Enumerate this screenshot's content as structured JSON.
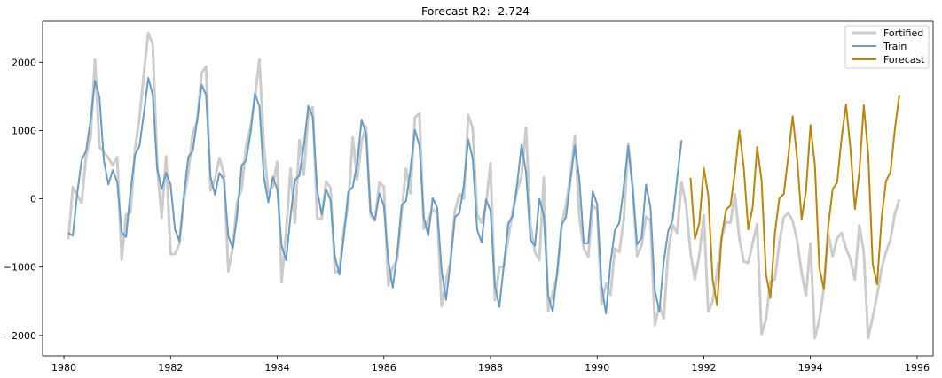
{
  "chart_data": {
    "type": "line",
    "title": "Forecast R2: -2.724",
    "xlabel": "",
    "ylabel": "",
    "xlim": [
      1979.6,
      1996.3
    ],
    "ylim": [
      -2300,
      2600
    ],
    "xticks": [
      1980,
      1982,
      1984,
      1986,
      1988,
      1990,
      1992,
      1994,
      1996
    ],
    "yticks": [
      -2000,
      -1000,
      0,
      1000,
      2000
    ],
    "grid": false,
    "legend": "top-right",
    "start": 1980.083,
    "step": 0.08333,
    "series": [
      {
        "name": "Fortified",
        "color": "#cccccc",
        "x_start": 1980.083,
        "values": [
          -590,
          170,
          60,
          -60,
          620,
          890,
          2040,
          760,
          680,
          600,
          490,
          610,
          -890,
          -230,
          -200,
          720,
          1180,
          1840,
          2430,
          2260,
          480,
          -280,
          620,
          -810,
          -810,
          -660,
          -30,
          380,
          960,
          1130,
          1840,
          1940,
          120,
          290,
          600,
          370,
          -1060,
          -710,
          -40,
          140,
          770,
          1050,
          1490,
          2040,
          760,
          90,
          180,
          540,
          -1220,
          -490,
          440,
          -350,
          860,
          350,
          1240,
          1340,
          -280,
          -300,
          250,
          160,
          -1080,
          -1040,
          -440,
          -100,
          900,
          280,
          840,
          1060,
          -240,
          -320,
          240,
          180,
          -1270,
          -1000,
          -890,
          -210,
          440,
          80,
          1190,
          1250,
          -440,
          -300,
          -160,
          -210,
          -1570,
          -1190,
          -910,
          -180,
          70,
          0,
          1230,
          1030,
          -230,
          -350,
          -90,
          520,
          -1480,
          -1000,
          -1000,
          -580,
          -170,
          120,
          340,
          1040,
          -380,
          -780,
          -900,
          310,
          -1640,
          -1380,
          -1120,
          -400,
          -80,
          330,
          930,
          -270,
          -730,
          -850,
          -100,
          -160,
          -1540,
          -1240,
          -1410,
          -730,
          -780,
          -300,
          810,
          160,
          -840,
          -680,
          -260,
          -320,
          -1850,
          -1560,
          -1750,
          -770,
          -380,
          -500,
          240,
          -90,
          -780,
          -1180,
          -820,
          -240,
          -1650,
          -1500,
          -1080,
          -580,
          -340,
          -350,
          70,
          -580,
          -920,
          -940,
          -650,
          -370,
          -1980,
          -1770,
          -1200,
          -1180,
          -640,
          -270,
          -210,
          -320,
          -610,
          -1070,
          -1420,
          -650,
          -2040,
          -1770,
          -1320,
          -510,
          -840,
          -580,
          -500,
          -720,
          -890,
          -1180,
          -390,
          -780,
          -2040,
          -1740,
          -1420,
          -1030,
          -780,
          -600,
          -220,
          -10
        ]
      },
      {
        "name": "Train",
        "color": "#6a9bc3",
        "x_start": 1980.083,
        "values": [
          -500,
          -540,
          80,
          570,
          700,
          1150,
          1730,
          1490,
          560,
          210,
          420,
          240,
          -490,
          -560,
          120,
          640,
          770,
          1250,
          1770,
          1520,
          440,
          140,
          380,
          210,
          -450,
          -620,
          50,
          610,
          700,
          1160,
          1670,
          1520,
          320,
          60,
          380,
          280,
          -550,
          -720,
          -240,
          490,
          560,
          960,
          1540,
          1350,
          320,
          -50,
          320,
          140,
          -690,
          -900,
          -250,
          280,
          340,
          780,
          1360,
          1200,
          130,
          -230,
          140,
          -20,
          -850,
          -1110,
          -550,
          100,
          170,
          520,
          1160,
          950,
          -190,
          -310,
          80,
          -100,
          -900,
          -1300,
          -810,
          -100,
          -30,
          440,
          1010,
          780,
          -270,
          -540,
          10,
          -130,
          -1050,
          -1480,
          -930,
          -270,
          -210,
          200,
          870,
          590,
          -450,
          -640,
          -10,
          -170,
          -1280,
          -1580,
          -980,
          -360,
          -250,
          220,
          790,
          390,
          -600,
          -690,
          0,
          -250,
          -1420,
          -1650,
          -1080,
          -380,
          -270,
          270,
          780,
          290,
          -650,
          -650,
          110,
          -80,
          -1270,
          -1680,
          -940,
          -460,
          -350,
          180,
          770,
          150,
          -670,
          -570,
          210,
          -120,
          -1340,
          -1650,
          -920,
          -470,
          -310,
          300,
          860
        ]
      },
      {
        "name": "Forecast",
        "color": "#b8860b",
        "x_start": 1991.75,
        "values": [
          310,
          -590,
          -350,
          450,
          50,
          -1190,
          -1560,
          -560,
          -160,
          -100,
          390,
          1000,
          450,
          -450,
          -120,
          760,
          270,
          -1110,
          -1450,
          -500,
          10,
          70,
          620,
          1210,
          590,
          -300,
          120,
          1080,
          490,
          -1010,
          -1320,
          -400,
          140,
          240,
          890,
          1380,
          730,
          -150,
          400,
          1370,
          650,
          -950,
          -1250,
          -290,
          260,
          390,
          1020,
          1520
        ]
      }
    ]
  }
}
